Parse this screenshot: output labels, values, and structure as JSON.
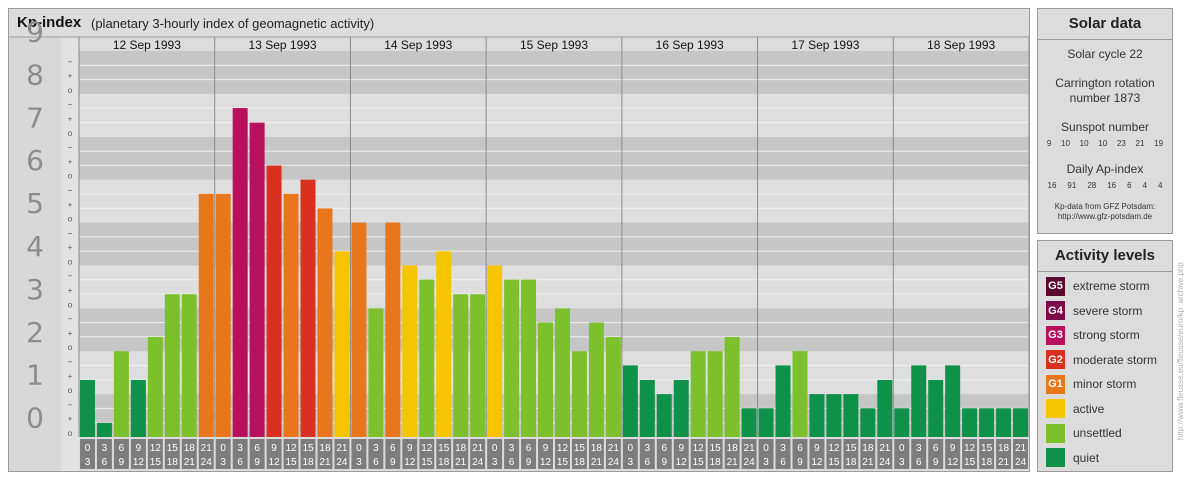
{
  "header": {
    "title": "Kp-index",
    "subtitle": "(planetary 3-hourly index of geomagnetic activity)"
  },
  "chart_data": {
    "type": "bar",
    "title": "Kp-index",
    "ylim": [
      0,
      9
    ],
    "y_tick_labels": [
      "0",
      "1",
      "2",
      "3",
      "4",
      "5",
      "6",
      "7",
      "8",
      "9"
    ],
    "minor_tick_labels": [
      "o",
      "+",
      "−"
    ],
    "days": [
      "12 Sep 1993",
      "13 Sep 1993",
      "14 Sep 1993",
      "15 Sep 1993",
      "16 Sep 1993",
      "17 Sep 1993",
      "18 Sep 1993"
    ],
    "interval_start_labels": [
      "0",
      "3",
      "6",
      "9",
      "12",
      "15",
      "18",
      "21"
    ],
    "interval_end_labels": [
      "3",
      "6",
      "9",
      "12",
      "15",
      "18",
      "21",
      "24"
    ],
    "values": [
      1.33,
      0.33,
      2.0,
      1.33,
      2.33,
      3.33,
      3.33,
      5.67,
      5.67,
      7.67,
      7.33,
      6.33,
      5.67,
      6.0,
      5.33,
      4.33,
      5.0,
      3.0,
      5.0,
      4.0,
      3.67,
      4.33,
      3.33,
      3.33,
      4.0,
      3.67,
      3.67,
      2.67,
      3.0,
      2.0,
      2.67,
      2.33,
      1.67,
      1.33,
      1.0,
      1.33,
      2.0,
      2.0,
      2.33,
      0.67,
      0.67,
      1.67,
      2.0,
      1.0,
      1.0,
      1.0,
      0.67,
      1.33,
      0.67,
      1.67,
      1.33,
      1.67,
      0.67,
      0.67,
      0.67,
      0.67
    ]
  },
  "solar": {
    "title": "Solar data",
    "solar_cycle": "Solar cycle 22",
    "carrington_1": "Carrington rotation",
    "carrington_2": "number 1873",
    "sunspot_title": "Sunspot number",
    "sunspot_values": [
      "9",
      "10",
      "10",
      "10",
      "23",
      "21",
      "19"
    ],
    "ap_title": "Daily Ap-index",
    "ap_values": [
      "16",
      "91",
      "28",
      "16",
      "6",
      "4",
      "4"
    ],
    "credit_1": "Kp-data from GFZ Potsdam:",
    "credit_2": "http://www.gfz-potsdam.de"
  },
  "activity_levels": {
    "title": "Activity levels",
    "levels": [
      {
        "code": "G5",
        "label": "extreme storm",
        "color": "#5a0a2e"
      },
      {
        "code": "G4",
        "label": "severe storm",
        "color": "#7d0a48"
      },
      {
        "code": "G3",
        "label": "strong storm",
        "color": "#b8105d"
      },
      {
        "code": "G2",
        "label": "moderate storm",
        "color": "#d93020"
      },
      {
        "code": "G1",
        "label": "minor storm",
        "color": "#e8761a"
      },
      {
        "code": "",
        "label": "active",
        "color": "#f7c400"
      },
      {
        "code": "",
        "label": "unsettled",
        "color": "#7cc12c"
      },
      {
        "code": "",
        "label": "quiet",
        "color": "#0e9148"
      }
    ]
  },
  "vertical_credit": "http://www.fleusse.eu/fleusse/euro/kp_archive.php"
}
